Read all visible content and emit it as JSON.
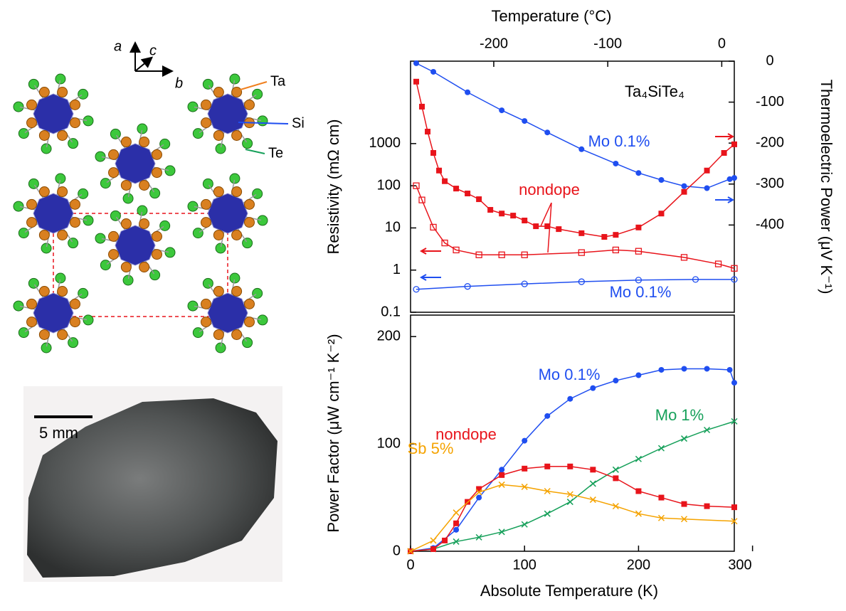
{
  "structure": {
    "axes": [
      "a",
      "c",
      "b"
    ],
    "atoms": [
      "Ta",
      "Si",
      "Te"
    ]
  },
  "photo": {
    "scale": "5 mm"
  },
  "chart_data": [
    {
      "type": "line",
      "annotation": "Ta₄SiTe₄",
      "x2label": "Temperature  (°C)",
      "x2lim": [
        -273,
        11
      ],
      "x2ticks": [
        -200,
        -100,
        0
      ],
      "xlim": [
        0,
        284
      ],
      "ylabel": "Resistivity (mΩ cm)",
      "ylim": [
        0.1,
        90000
      ],
      "yticks": [
        0.1,
        1,
        10,
        100,
        1000
      ],
      "ylog": true,
      "y2label": "Thermoelectric Power (μV K⁻¹)",
      "y2lim": [
        -613,
        0
      ],
      "y2ticks": [
        0,
        -100,
        -200,
        -300,
        -400
      ],
      "series": [
        {
          "name": "Mo 0.1%",
          "color": "#1f4ef0",
          "axis": "y2",
          "marker": "circle",
          "x": [
            5,
            20,
            50,
            80,
            100,
            120,
            150,
            180,
            200,
            220,
            240,
            260,
            280,
            284
          ],
          "values": [
            -5,
            -26,
            -76,
            -120,
            -146,
            -174,
            -215,
            -250,
            -273,
            -290,
            -305,
            -310,
            -288,
            -285
          ]
        },
        {
          "name": "nondope",
          "color": "#e8141b",
          "axis": "y2",
          "marker": "square",
          "x": [
            5,
            10,
            15,
            20,
            25,
            30,
            40,
            50,
            60,
            70,
            80,
            90,
            100,
            110,
            120,
            130,
            150,
            170,
            180,
            200,
            220,
            240,
            260,
            275,
            284
          ],
          "values": [
            -50,
            -111,
            -172,
            -224,
            -267,
            -293,
            -311,
            -323,
            -337,
            -363,
            -372,
            -377,
            -389,
            -403,
            -403,
            -410,
            -420,
            -429,
            -424,
            -406,
            -372,
            -319,
            -267,
            -224,
            -203
          ]
        },
        {
          "color": "#e8141b",
          "marker": "open-square",
          "x": [
            5,
            10,
            20,
            30,
            40,
            60,
            80,
            100,
            150,
            180,
            200,
            240,
            270,
            284
          ],
          "values": [
            100,
            46,
            10.4,
            4.4,
            3,
            2.3,
            2.3,
            2.3,
            2.6,
            3,
            2.8,
            2,
            1.4,
            1.1
          ]
        },
        {
          "name": "Mo 0.1%",
          "color": "#1f4ef0",
          "marker": "open-circle",
          "x": [
            5,
            50,
            100,
            150,
            200,
            250,
            284
          ],
          "values": [
            0.35,
            0.41,
            0.47,
            0.53,
            0.58,
            0.6,
            0.6
          ]
        }
      ]
    },
    {
      "type": "line",
      "xlabel": "Absolute Temperature  (K)",
      "xlim": [
        0,
        284
      ],
      "xticks": [
        0,
        100,
        200,
        300
      ],
      "ylabel": "Power Factor (μW cm⁻¹ K⁻²)",
      "ylim": [
        0,
        220
      ],
      "yticks": [
        0,
        100,
        200
      ],
      "series": [
        {
          "name": "Mo 0.1%",
          "color": "#1f4ef0",
          "marker": "circle",
          "x": [
            0,
            20,
            40,
            60,
            80,
            100,
            120,
            140,
            160,
            180,
            200,
            220,
            240,
            260,
            280,
            284
          ],
          "values": [
            0,
            3,
            20,
            50,
            76,
            103,
            126,
            142,
            152,
            159,
            164,
            169,
            170,
            170,
            169,
            157
          ]
        },
        {
          "name": "Mo 1%",
          "color": "#16a05a",
          "marker": "cross",
          "x": [
            0,
            20,
            40,
            60,
            80,
            100,
            120,
            140,
            160,
            180,
            200,
            220,
            240,
            260,
            284
          ],
          "values": [
            0,
            2,
            9,
            13,
            18,
            25,
            35,
            46,
            63,
            76,
            86,
            96,
            105,
            113,
            121
          ]
        },
        {
          "name": "nondope",
          "color": "#e8141b",
          "marker": "square",
          "x": [
            0,
            20,
            30,
            40,
            50,
            60,
            80,
            100,
            120,
            140,
            160,
            180,
            200,
            220,
            240,
            260,
            284
          ],
          "values": [
            0,
            2,
            10,
            26,
            46,
            58,
            71,
            77,
            79,
            79,
            76,
            68,
            56,
            50,
            44,
            42,
            41
          ]
        },
        {
          "name": "Sb 5%",
          "color": "#f5a300",
          "marker": "cross",
          "x": [
            0,
            20,
            40,
            60,
            80,
            100,
            120,
            140,
            160,
            180,
            200,
            220,
            240,
            284
          ],
          "values": [
            0,
            10,
            36,
            55,
            62,
            60,
            56,
            53,
            48,
            42,
            35,
            31,
            30,
            28
          ]
        }
      ]
    }
  ]
}
